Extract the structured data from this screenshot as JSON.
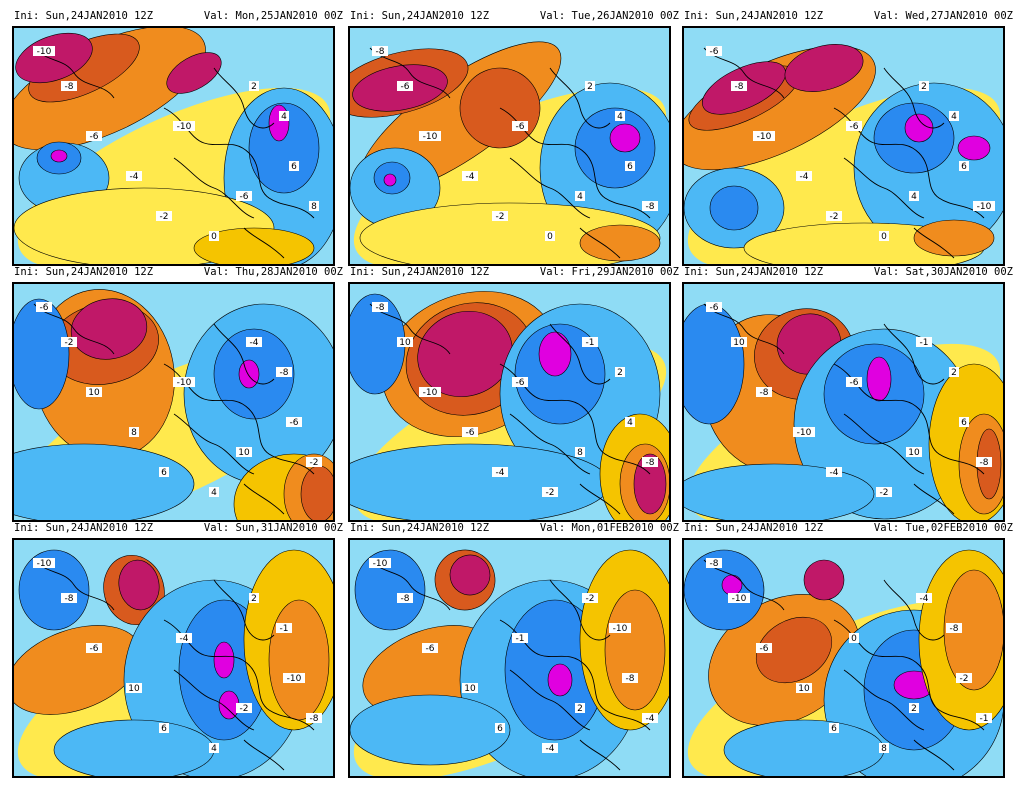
{
  "colors": {
    "very_cold": "#e000e0",
    "cold": "#1f4fd8",
    "cool": "#2a8af0",
    "mild_cool": "#4cb8f5",
    "light_cool": "#8fdcf5",
    "neutral": "#ffffff",
    "light_warm": "#ffe94d",
    "mild_warm": "#f5c400",
    "warm": "#f08c1e",
    "hot": "#d85a1e",
    "very_hot": "#c01868"
  },
  "panels": [
    {
      "ini": "Ini: Sun,24JAN2010 12Z",
      "val": "Val: Mon,25JAN2010 00Z",
      "labels": [
        "-10",
        "-8",
        "-6",
        "-4",
        "-2",
        "0",
        "2",
        "4",
        "6",
        "8",
        "-10",
        "-6"
      ]
    },
    {
      "ini": "Ini: Sun,24JAN2010 12Z",
      "val": "Val: Tue,26JAN2010 00Z",
      "labels": [
        "-8",
        "-6",
        "-10",
        "-4",
        "-2",
        "0",
        "2",
        "4",
        "6",
        "-8",
        "-6",
        "4"
      ]
    },
    {
      "ini": "Ini: Sun,24JAN2010 12Z",
      "val": "Val: Wed,27JAN2010 00Z",
      "labels": [
        "-6",
        "-8",
        "-10",
        "-4",
        "-2",
        "0",
        "2",
        "4",
        "6",
        "-10",
        "-6",
        "4"
      ]
    },
    {
      "ini": "Ini: Sun,24JAN2010 12Z",
      "val": "Val: Thu,28JAN2010 00Z",
      "labels": [
        "-6",
        "-2",
        "10",
        "8",
        "6",
        "4",
        "-4",
        "-8",
        "-6",
        "-2",
        "-10",
        "10"
      ]
    },
    {
      "ini": "Ini: Sun,24JAN2010 12Z",
      "val": "Val: Fri,29JAN2010 00Z",
      "labels": [
        "-8",
        "10",
        "-10",
        "-6",
        "-4",
        "-2",
        "-1",
        "2",
        "4",
        "-8",
        "-6",
        "8"
      ]
    },
    {
      "ini": "Ini: Sun,24JAN2010 12Z",
      "val": "Val: Sat,30JAN2010 00Z",
      "labels": [
        "-6",
        "10",
        "-8",
        "-10",
        "-4",
        "-2",
        "-1",
        "2",
        "6",
        "-8",
        "-6",
        "10"
      ]
    },
    {
      "ini": "Ini: Sun,24JAN2010 12Z",
      "val": "Val: Sun,31JAN2010 00Z",
      "labels": [
        "-10",
        "-8",
        "-6",
        "10",
        "6",
        "4",
        "2",
        "-1",
        "-10",
        "-8",
        "-4",
        "-2"
      ]
    },
    {
      "ini": "Ini: Sun,24JAN2010 12Z",
      "val": "Val: Mon,01FEB2010 00Z",
      "labels": [
        "-10",
        "-8",
        "-6",
        "10",
        "6",
        "-4",
        "-2",
        "-10",
        "-8",
        "-4",
        "-1",
        "2"
      ]
    },
    {
      "ini": "Ini: Sun,24JAN2010 12Z",
      "val": "Val: Tue,02FEB2010 00Z",
      "labels": [
        "-8",
        "-10",
        "-6",
        "10",
        "6",
        "8",
        "-4",
        "-8",
        "-2",
        "-1",
        "0",
        "2"
      ]
    }
  ]
}
